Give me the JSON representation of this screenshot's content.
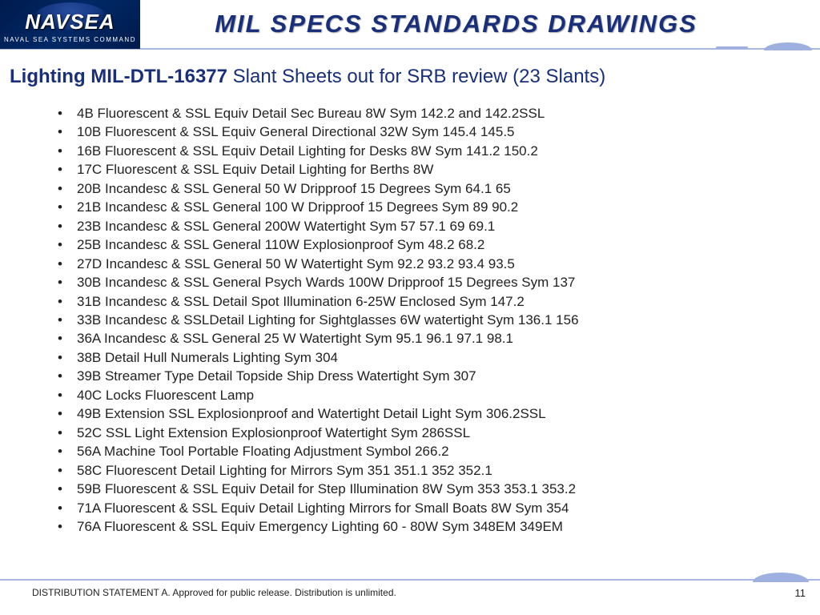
{
  "logo": {
    "main": "NAVSEA",
    "sub": "NAVAL SEA SYSTEMS COMMAND"
  },
  "header": {
    "title": "MIL SPECS  STANDARDS  DRAWINGS"
  },
  "subtitle": {
    "bold": "Lighting  MIL-DTL-16377",
    "rest": " Slant Sheets out for SRB review (23 Slants)"
  },
  "items": [
    "  4B Fluorescent & SSL Equiv  Detail Sec Bureau  8W Sym 142.2 and 142.2SSL",
    "10B Fluorescent & SSL Equiv  General  Directional  32W Sym 145.4  145.5",
    "16B Fluorescent & SSL Equiv  Detail Lighting for Desks  8W Sym 141.2  150.2",
    "17C Fluorescent & SSL Equiv  Detail Lighting for Berths  8W",
    "20B Incandesc & SSL General 50 W Dripproof 15 Degrees  Sym 64.1  65",
    "21B Incandesc & SSL General 100 W Dripproof 15 Degrees  Sym 89  90.2",
    "23B Incandesc & SSL General 200W Watertight  Sym 57  57.1  69  69.1",
    "25B Incandesc & SSL General 110W Explosionproof  Sym 48.2  68.2",
    "27D Incandesc & SSL General 50 W Watertight  Sym 92.2  93.2  93.4  93.5",
    "30B Incandesc & SSL General Psych Wards 100W  Dripproof 15 Degrees  Sym 137",
    "31B Incandesc & SSL Detail Spot Illumination 6-25W Enclosed  Sym 147.2",
    "33B Incandesc & SSLDetail Lighting for Sightglasses 6W watertight Sym 136.1  156",
    "36A Incandesc & SSL General 25 W Watertight  Sym 95.1  96.1  97.1  98.1",
    "38B Detail Hull Numerals Lighting  Sym 304",
    "39B Streamer Type Detail Topside Ship Dress Watertight Sym 307",
    "40C Locks Fluorescent Lamp",
    "49B Extension SSL Explosionproof and Watertight  Detail Light Sym 306.2SSL",
    "52C SSL Light  Extension Explosionproof Watertight  Sym 286SSL",
    "56A Machine Tool Portable  Floating Adjustment  Symbol 266.2",
    "58C Fluorescent Detail Lighting for Mirrors Sym 351  351.1  352  352.1",
    "59B Fluorescent & SSL Equiv Detail for Step Illumination  8W Sym 353  353.1  353.2",
    "71A Fluorescent & SSL Equiv Detail Lighting Mirrors for Small Boats  8W Sym 354",
    "76A Fluorescent & SSL Equiv Emergency Lighting  60 - 80W  Sym 348EM  349EM"
  ],
  "footer": {
    "distribution": "DISTRIBUTION STATEMENT A. Approved for public release. Distribution is unlimited.",
    "page": "11"
  },
  "colors": {
    "brand_blue": "#1a2f7a",
    "rule_blue": "#a8b8e0",
    "decor_blue": "#9db0e0",
    "logo_bg": "#002966",
    "text": "#222222",
    "background": "#ffffff"
  },
  "typography": {
    "title_fontsize": 31,
    "subtitle_fontsize": 24,
    "body_fontsize": 17,
    "footer_fontsize": 12
  }
}
